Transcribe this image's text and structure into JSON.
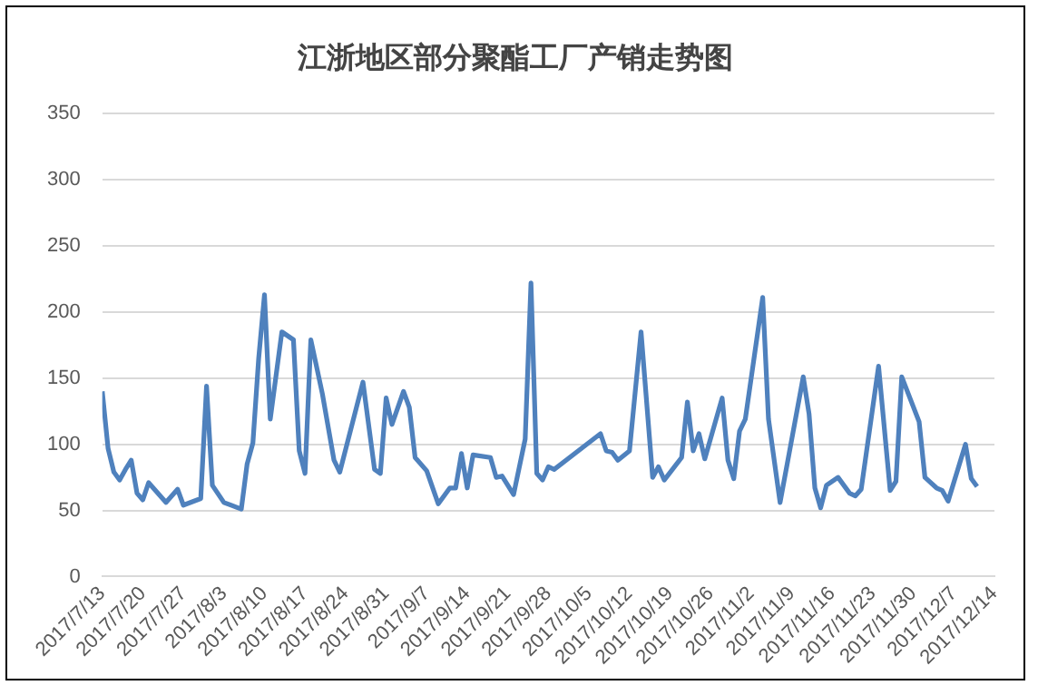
{
  "chart_data": {
    "type": "line",
    "title": "江浙地区部分聚酯工厂产销走势图",
    "x": [
      "2017-07-13",
      "2017-07-14",
      "2017-07-15",
      "2017-07-16",
      "2017-07-17",
      "2017-07-18",
      "2017-07-19",
      "2017-07-20",
      "2017-07-21",
      "2017-07-24",
      "2017-07-26",
      "2017-07-27",
      "2017-07-30",
      "2017-07-31",
      "2017-08-01",
      "2017-08-03",
      "2017-08-06",
      "2017-08-07",
      "2017-08-08",
      "2017-08-09",
      "2017-08-10",
      "2017-08-11",
      "2017-08-13",
      "2017-08-15",
      "2017-08-16",
      "2017-08-17",
      "2017-08-18",
      "2017-08-20",
      "2017-08-22",
      "2017-08-23",
      "2017-08-27",
      "2017-08-29",
      "2017-08-30",
      "2017-08-31",
      "2017-09-01",
      "2017-09-03",
      "2017-09-04",
      "2017-09-05",
      "2017-09-07",
      "2017-09-09",
      "2017-09-11",
      "2017-09-12",
      "2017-09-13",
      "2017-09-14",
      "2017-09-15",
      "2017-09-18",
      "2017-09-19",
      "2017-09-20",
      "2017-09-22",
      "2017-09-24",
      "2017-09-25",
      "2017-09-26",
      "2017-09-27",
      "2017-09-28",
      "2017-09-29",
      "2017-10-07",
      "2017-10-08",
      "2017-10-09",
      "2017-10-10",
      "2017-10-12",
      "2017-10-14",
      "2017-10-16",
      "2017-10-17",
      "2017-10-18",
      "2017-10-21",
      "2017-10-22",
      "2017-10-23",
      "2017-10-24",
      "2017-10-25",
      "2017-10-28",
      "2017-10-29",
      "2017-10-30",
      "2017-10-31",
      "2017-11-01",
      "2017-11-04",
      "2017-11-05",
      "2017-11-07",
      "2017-11-11",
      "2017-11-12",
      "2017-11-13",
      "2017-11-14",
      "2017-11-15",
      "2017-11-17",
      "2017-11-19",
      "2017-11-20",
      "2017-11-21",
      "2017-11-24",
      "2017-11-26",
      "2017-11-27",
      "2017-11-28",
      "2017-12-01",
      "2017-12-02",
      "2017-12-04",
      "2017-12-05",
      "2017-12-06",
      "2017-12-09",
      "2017-12-10",
      "2017-12-11"
    ],
    "series": [
      {
        "color": "#4f81bd",
        "values": [
          140,
          97,
          79,
          73,
          81,
          88,
          63,
          58,
          71,
          56,
          66,
          54,
          59,
          144,
          69,
          56,
          51,
          85,
          101,
          165,
          213,
          119,
          185,
          179,
          95,
          78,
          179,
          138,
          88,
          79,
          147,
          81,
          78,
          135,
          115,
          140,
          128,
          90,
          80,
          55,
          67,
          67,
          93,
          67,
          92,
          90,
          75,
          76,
          62,
          104,
          222,
          78,
          73,
          83,
          81,
          108,
          95,
          94,
          88,
          95,
          185,
          75,
          83,
          73,
          90,
          132,
          95,
          108,
          89,
          135,
          88,
          74,
          110,
          119,
          211,
          119,
          56,
          151,
          123,
          67,
          52,
          69,
          75,
          63,
          61,
          66,
          159,
          65,
          72,
          151,
          117,
          75,
          67,
          65,
          57,
          100,
          74,
          68
        ]
      }
    ],
    "xlim": [
      "2017-07-13",
      "2017-12-14"
    ],
    "xticks": [
      {
        "value": "2017-07-13",
        "label": "2017/7/13"
      },
      {
        "value": "2017-07-20",
        "label": "2017/7/20"
      },
      {
        "value": "2017-07-27",
        "label": "2017/7/27"
      },
      {
        "value": "2017-08-03",
        "label": "2017/8/3"
      },
      {
        "value": "2017-08-10",
        "label": "2017/8/10"
      },
      {
        "value": "2017-08-17",
        "label": "2017/8/17"
      },
      {
        "value": "2017-08-24",
        "label": "2017/8/24"
      },
      {
        "value": "2017-08-31",
        "label": "2017/8/31"
      },
      {
        "value": "2017-09-07",
        "label": "2017/9/7"
      },
      {
        "value": "2017-09-14",
        "label": "2017/9/14"
      },
      {
        "value": "2017-09-21",
        "label": "2017/9/21"
      },
      {
        "value": "2017-09-28",
        "label": "2017/9/28"
      },
      {
        "value": "2017-10-05",
        "label": "2017/10/5"
      },
      {
        "value": "2017-10-12",
        "label": "2017/10/12"
      },
      {
        "value": "2017-10-19",
        "label": "2017/10/19"
      },
      {
        "value": "2017-10-26",
        "label": "2017/10/26"
      },
      {
        "value": "2017-11-02",
        "label": "2017/11/2"
      },
      {
        "value": "2017-11-09",
        "label": "2017/11/9"
      },
      {
        "value": "2017-11-16",
        "label": "2017/11/16"
      },
      {
        "value": "2017-11-23",
        "label": "2017/11/23"
      },
      {
        "value": "2017-11-30",
        "label": "2017/11/30"
      },
      {
        "value": "2017-12-07",
        "label": "2017/12/7"
      },
      {
        "value": "2017-12-14",
        "label": "2017/12/14"
      }
    ],
    "ylim": [
      0,
      350
    ],
    "yticks": [
      0,
      50,
      100,
      150,
      200,
      250,
      300,
      350
    ],
    "grid": "y",
    "marker": "none",
    "line_style": "solid",
    "legend": false
  }
}
